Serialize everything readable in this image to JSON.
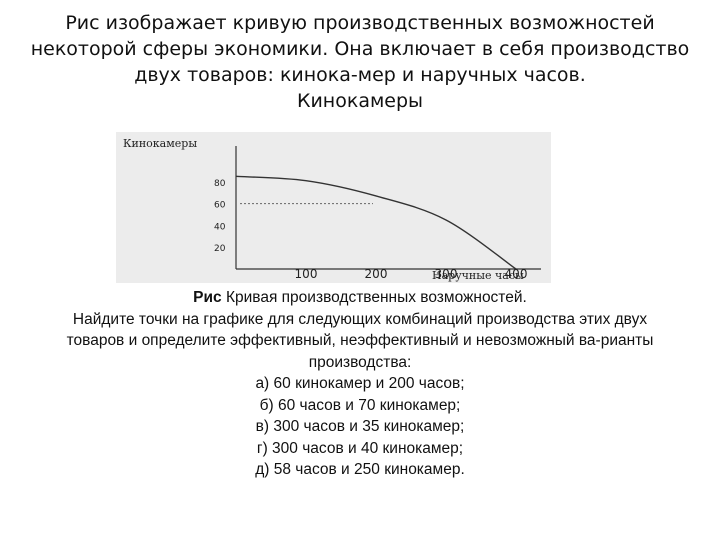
{
  "heading": {
    "line1": "Рис изображает кривую производственных возможностей",
    "line2": "некоторой сферы экономики. Она включает в себя производство",
    "line3": "двух товаров: кинока-мер и наручных часов.",
    "line4": "Кинокамеры"
  },
  "chart_data": {
    "type": "line",
    "ylabel": "Кинокамеры",
    "xlabel": "Наручные часы",
    "y_ticks": [
      "80",
      "60",
      "40",
      "20"
    ],
    "x_ticks": [
      "100",
      "200",
      "300",
      "400"
    ],
    "xlim": [
      0,
      400
    ],
    "ylim": [
      0,
      90
    ],
    "grid": false,
    "series": [
      {
        "x": [
          0,
          100,
          200,
          300,
          400
        ],
        "y": [
          85,
          81,
          67,
          45,
          0
        ]
      }
    ],
    "reference_line_y": 60
  },
  "caption": {
    "label_bold": "Рис",
    "label_rest": " Кривая производственных возможностей.",
    "task_line1": "Найдите точки на графике для следующих комбинаций производства этих двух",
    "task_line2": "товаров и определите эффективный, неэффективный и невозможный ва-рианты",
    "task_line3": "производства:",
    "option_a": "а) 60 кинокамер и 200 часов;",
    "option_b": "б) 60 часов и 70 кинокамер;",
    "option_c": "в) 300 часов и 35 кинокамер;",
    "option_d": "г) 300 часов и 40 кинокамер;",
    "option_e": "д) 58 часов и 250 кинокамер."
  }
}
